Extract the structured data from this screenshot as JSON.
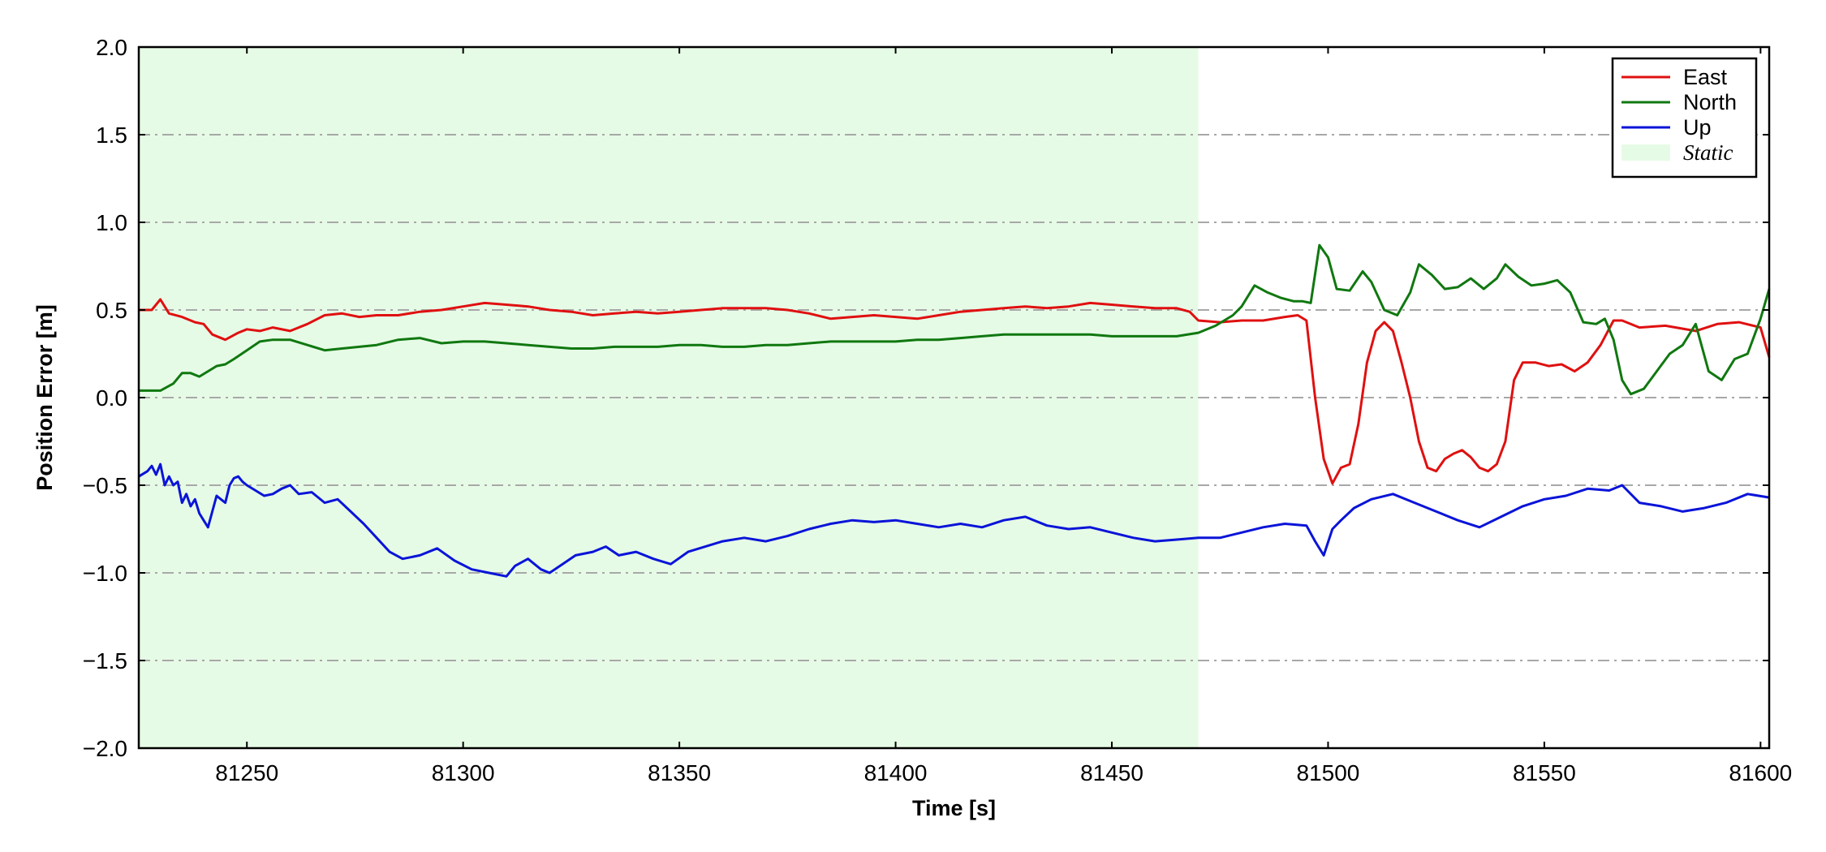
{
  "chart_data": {
    "type": "line",
    "xlabel": "Time [s]",
    "ylabel": "Position Error [m]",
    "xlim": [
      81225,
      81602
    ],
    "ylim": [
      -2.0,
      2.0
    ],
    "x_ticks": [
      81250,
      81300,
      81350,
      81400,
      81450,
      81500,
      81550,
      81600
    ],
    "x_tick_labels": [
      "81250",
      "81300",
      "81350",
      "81400",
      "81450",
      "81500",
      "81550",
      "81600"
    ],
    "y_ticks": [
      -2.0,
      -1.5,
      -1.0,
      -0.5,
      0.0,
      0.5,
      1.0,
      1.5,
      2.0
    ],
    "y_tick_labels": [
      "−2.0",
      "−1.5",
      "−1.0",
      "−0.5",
      "0.0",
      "0.5",
      "1.0",
      "1.5",
      "2.0"
    ],
    "grid": {
      "axis": "y",
      "style": "dash-dot",
      "color": "#a8a8a8"
    },
    "legend": {
      "position": "top-right"
    },
    "static_region": {
      "label": "Static",
      "x_start": 81225,
      "x_end": 81470,
      "color": "#e6fbe6"
    },
    "series": [
      {
        "name": "East",
        "color": "#e01010",
        "x": [
          81225,
          81228,
          81230,
          81232,
          81235,
          81238,
          81240,
          81242,
          81245,
          81248,
          81250,
          81253,
          81256,
          81260,
          81264,
          81268,
          81272,
          81276,
          81280,
          81285,
          81290,
          81295,
          81300,
          81305,
          81310,
          81315,
          81320,
          81325,
          81330,
          81335,
          81340,
          81345,
          81350,
          81355,
          81360,
          81365,
          81370,
          81375,
          81380,
          81385,
          81390,
          81395,
          81400,
          81405,
          81410,
          81415,
          81420,
          81425,
          81430,
          81435,
          81440,
          81445,
          81450,
          81455,
          81460,
          81465,
          81468,
          81470,
          81475,
          81480,
          81485,
          81490,
          81493,
          81495,
          81497,
          81499,
          81501,
          81503,
          81505,
          81507,
          81509,
          81511,
          81513,
          81515,
          81517,
          81519,
          81521,
          81523,
          81525,
          81527,
          81529,
          81531,
          81533,
          81535,
          81537,
          81539,
          81541,
          81543,
          81545,
          81548,
          81551,
          81554,
          81557,
          81560,
          81563,
          81566,
          81568,
          81572,
          81578,
          81585,
          81590,
          81595,
          81600,
          81602
        ],
        "y": [
          0.5,
          0.5,
          0.56,
          0.48,
          0.46,
          0.43,
          0.42,
          0.36,
          0.33,
          0.37,
          0.39,
          0.38,
          0.4,
          0.38,
          0.42,
          0.47,
          0.48,
          0.46,
          0.47,
          0.47,
          0.49,
          0.5,
          0.52,
          0.54,
          0.53,
          0.52,
          0.5,
          0.49,
          0.47,
          0.48,
          0.49,
          0.48,
          0.49,
          0.5,
          0.51,
          0.51,
          0.51,
          0.5,
          0.48,
          0.45,
          0.46,
          0.47,
          0.46,
          0.45,
          0.47,
          0.49,
          0.5,
          0.51,
          0.52,
          0.51,
          0.52,
          0.54,
          0.53,
          0.52,
          0.51,
          0.51,
          0.49,
          0.44,
          0.43,
          0.44,
          0.44,
          0.46,
          0.47,
          0.44,
          0.0,
          -0.35,
          -0.49,
          -0.4,
          -0.38,
          -0.15,
          0.2,
          0.38,
          0.43,
          0.38,
          0.2,
          0.0,
          -0.25,
          -0.4,
          -0.42,
          -0.35,
          -0.32,
          -0.3,
          -0.34,
          -0.4,
          -0.42,
          -0.38,
          -0.25,
          0.1,
          0.2,
          0.2,
          0.18,
          0.19,
          0.15,
          0.2,
          0.3,
          0.44,
          0.44,
          0.4,
          0.41,
          0.38,
          0.42,
          0.43,
          0.4,
          0.23
        ]
      },
      {
        "name": "North",
        "color": "#107810",
        "x": [
          81225,
          81230,
          81233,
          81235,
          81237,
          81239,
          81241,
          81243,
          81245,
          81247,
          81250,
          81253,
          81256,
          81260,
          81264,
          81268,
          81272,
          81276,
          81280,
          81285,
          81290,
          81295,
          81300,
          81305,
          81310,
          81315,
          81320,
          81325,
          81330,
          81335,
          81340,
          81345,
          81350,
          81355,
          81360,
          81365,
          81370,
          81375,
          81380,
          81385,
          81390,
          81395,
          81400,
          81405,
          81410,
          81415,
          81420,
          81425,
          81430,
          81435,
          81440,
          81445,
          81450,
          81455,
          81460,
          81465,
          81470,
          81474,
          81478,
          81480,
          81483,
          81486,
          81489,
          81492,
          81494,
          81496,
          81498,
          81500,
          81502,
          81505,
          81508,
          81510,
          81513,
          81516,
          81519,
          81521,
          81524,
          81527,
          81530,
          81533,
          81536,
          81539,
          81541,
          81544,
          81547,
          81550,
          81553,
          81556,
          81559,
          81562,
          81564,
          81566,
          81568,
          81570,
          81573,
          81576,
          81579,
          81582,
          81585,
          81588,
          81591,
          81594,
          81597,
          81600,
          81602
        ],
        "y": [
          0.04,
          0.04,
          0.08,
          0.14,
          0.14,
          0.12,
          0.15,
          0.18,
          0.19,
          0.22,
          0.27,
          0.32,
          0.33,
          0.33,
          0.3,
          0.27,
          0.28,
          0.29,
          0.3,
          0.33,
          0.34,
          0.31,
          0.32,
          0.32,
          0.31,
          0.3,
          0.29,
          0.28,
          0.28,
          0.29,
          0.29,
          0.29,
          0.3,
          0.3,
          0.29,
          0.29,
          0.3,
          0.3,
          0.31,
          0.32,
          0.32,
          0.32,
          0.32,
          0.33,
          0.33,
          0.34,
          0.35,
          0.36,
          0.36,
          0.36,
          0.36,
          0.36,
          0.35,
          0.35,
          0.35,
          0.35,
          0.37,
          0.41,
          0.47,
          0.52,
          0.64,
          0.6,
          0.57,
          0.55,
          0.55,
          0.54,
          0.87,
          0.8,
          0.62,
          0.61,
          0.72,
          0.66,
          0.5,
          0.47,
          0.6,
          0.76,
          0.7,
          0.62,
          0.63,
          0.68,
          0.62,
          0.68,
          0.76,
          0.69,
          0.64,
          0.65,
          0.67,
          0.6,
          0.43,
          0.42,
          0.45,
          0.33,
          0.1,
          0.02,
          0.05,
          0.15,
          0.25,
          0.3,
          0.42,
          0.15,
          0.1,
          0.22,
          0.25,
          0.45,
          0.62
        ]
      },
      {
        "name": "Up",
        "color": "#0a14d8",
        "x": [
          81225,
          81227,
          81228,
          81229,
          81230,
          81231,
          81232,
          81233,
          81234,
          81235,
          81236,
          81237,
          81238,
          81239,
          81240,
          81241,
          81242,
          81243,
          81244,
          81245,
          81246,
          81247,
          81248,
          81249,
          81250,
          81252,
          81254,
          81256,
          81258,
          81260,
          81262,
          81265,
          81268,
          81271,
          81274,
          81277,
          81280,
          81283,
          81286,
          81290,
          81294,
          81298,
          81302,
          81306,
          81310,
          81312,
          81315,
          81318,
          81320,
          81323,
          81326,
          81330,
          81333,
          81336,
          81340,
          81344,
          81348,
          81352,
          81356,
          81360,
          81365,
          81370,
          81375,
          81380,
          81385,
          81390,
          81395,
          81400,
          81405,
          81410,
          81415,
          81420,
          81425,
          81430,
          81435,
          81440,
          81445,
          81450,
          81455,
          81460,
          81465,
          81470,
          81475,
          81480,
          81485,
          81490,
          81495,
          81497,
          81499,
          81501,
          81503,
          81506,
          81510,
          81515,
          81520,
          81525,
          81530,
          81535,
          81540,
          81545,
          81550,
          81555,
          81560,
          81565,
          81568,
          81572,
          81577,
          81582,
          81587,
          81592,
          81597,
          81602
        ],
        "y": [
          -0.45,
          -0.42,
          -0.39,
          -0.44,
          -0.38,
          -0.5,
          -0.45,
          -0.5,
          -0.48,
          -0.6,
          -0.55,
          -0.62,
          -0.58,
          -0.66,
          -0.7,
          -0.74,
          -0.65,
          -0.56,
          -0.58,
          -0.6,
          -0.5,
          -0.46,
          -0.45,
          -0.48,
          -0.5,
          -0.53,
          -0.56,
          -0.55,
          -0.52,
          -0.5,
          -0.55,
          -0.54,
          -0.6,
          -0.58,
          -0.65,
          -0.72,
          -0.8,
          -0.88,
          -0.92,
          -0.9,
          -0.86,
          -0.93,
          -0.98,
          -1.0,
          -1.02,
          -0.96,
          -0.92,
          -0.98,
          -1.0,
          -0.95,
          -0.9,
          -0.88,
          -0.85,
          -0.9,
          -0.88,
          -0.92,
          -0.95,
          -0.88,
          -0.85,
          -0.82,
          -0.8,
          -0.82,
          -0.79,
          -0.75,
          -0.72,
          -0.7,
          -0.71,
          -0.7,
          -0.72,
          -0.74,
          -0.72,
          -0.74,
          -0.7,
          -0.68,
          -0.73,
          -0.75,
          -0.74,
          -0.77,
          -0.8,
          -0.82,
          -0.81,
          -0.8,
          -0.8,
          -0.77,
          -0.74,
          -0.72,
          -0.73,
          -0.82,
          -0.9,
          -0.75,
          -0.7,
          -0.63,
          -0.58,
          -0.55,
          -0.6,
          -0.65,
          -0.7,
          -0.74,
          -0.68,
          -0.62,
          -0.58,
          -0.56,
          -0.52,
          -0.53,
          -0.5,
          -0.6,
          -0.62,
          -0.65,
          -0.63,
          -0.6,
          -0.55,
          -0.57
        ]
      }
    ]
  }
}
